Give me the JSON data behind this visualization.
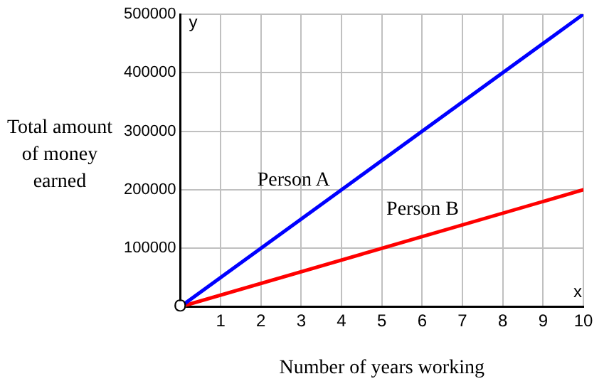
{
  "chart_data": {
    "type": "line",
    "xlabel": "Number of years working",
    "ylabel": "Total amount of money earned",
    "x": [
      0,
      10
    ],
    "series": [
      {
        "name": "Person A",
        "color": "#0000ff",
        "values": [
          0,
          500000
        ]
      },
      {
        "name": "Person B",
        "color": "#ff0000",
        "values": [
          0,
          200000
        ]
      }
    ],
    "xlim": [
      0,
      10
    ],
    "xticks": [
      {
        "value": 0,
        "label": null
      },
      1,
      2,
      3,
      4,
      5,
      6,
      7,
      8,
      9,
      10
    ],
    "ylim": [
      0,
      500000
    ],
    "yticks": [
      {
        "value": 0,
        "label": null
      },
      100000,
      200000,
      300000,
      400000,
      500000
    ],
    "annotations": [
      "y",
      "x",
      "O"
    ],
    "grid": true,
    "legend": false,
    "line_style": "solid"
  }
}
